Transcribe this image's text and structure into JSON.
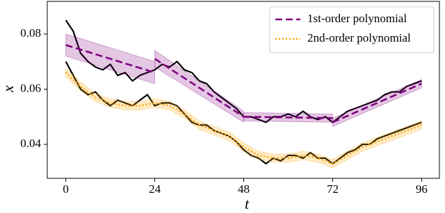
{
  "chart_data": {
    "type": "line",
    "xlabel": "t",
    "ylabel": "x",
    "xlim": [
      -5,
      100.8
    ],
    "ylim": [
      0.0277,
      0.0918
    ],
    "xticks": [
      0,
      24,
      48,
      72,
      96
    ],
    "yticks": [
      0.04,
      0.06,
      0.08
    ],
    "legend": "upper right",
    "series": [
      {
        "color": "#000000",
        "style": "solid",
        "x": [
          0,
          2,
          4,
          6,
          8,
          10,
          12,
          14,
          16,
          18,
          20,
          22,
          24,
          26,
          28,
          30,
          32,
          34,
          36,
          38,
          40,
          42,
          44,
          46,
          48,
          50,
          52,
          54,
          56,
          58,
          60,
          62,
          64,
          66,
          68,
          70,
          72,
          74,
          76,
          78,
          80,
          82,
          84,
          86,
          88,
          90,
          92,
          94,
          96
        ],
        "values": [
          0.085,
          0.081,
          0.073,
          0.07,
          0.068,
          0.067,
          0.069,
          0.065,
          0.066,
          0.063,
          0.065,
          0.066,
          0.067,
          0.069,
          0.068,
          0.07,
          0.067,
          0.066,
          0.063,
          0.062,
          0.059,
          0.057,
          0.055,
          0.053,
          0.05,
          0.05,
          0.049,
          0.048,
          0.05,
          0.05,
          0.051,
          0.05,
          0.052,
          0.05,
          0.049,
          0.05,
          0.048,
          0.05,
          0.052,
          0.053,
          0.054,
          0.055,
          0.056,
          0.058,
          0.059,
          0.059,
          0.061,
          0.062,
          0.063
        ]
      },
      {
        "color": "#000000",
        "style": "solid",
        "x": [
          0,
          2,
          4,
          6,
          8,
          10,
          12,
          14,
          16,
          18,
          20,
          22,
          24,
          26,
          28,
          30,
          32,
          34,
          36,
          38,
          40,
          42,
          44,
          46,
          48,
          50,
          52,
          54,
          56,
          58,
          60,
          62,
          64,
          66,
          68,
          70,
          72,
          74,
          76,
          78,
          80,
          82,
          84,
          86,
          88,
          90,
          92,
          94,
          96
        ],
        "values": [
          0.07,
          0.065,
          0.06,
          0.058,
          0.059,
          0.056,
          0.054,
          0.056,
          0.055,
          0.054,
          0.056,
          0.058,
          0.054,
          0.055,
          0.055,
          0.054,
          0.051,
          0.048,
          0.047,
          0.047,
          0.045,
          0.044,
          0.043,
          0.041,
          0.038,
          0.036,
          0.035,
          0.033,
          0.035,
          0.034,
          0.036,
          0.036,
          0.035,
          0.037,
          0.035,
          0.035,
          0.033,
          0.035,
          0.037,
          0.038,
          0.04,
          0.04,
          0.042,
          0.043,
          0.044,
          0.045,
          0.046,
          0.047,
          0.048
        ]
      },
      {
        "name": "1st-order polynomial",
        "color": "#800080",
        "style": "dashed",
        "x": [
          0,
          24,
          24,
          24,
          48,
          48,
          48,
          72,
          72,
          72,
          96
        ],
        "values": [
          0.076,
          0.066,
          null,
          0.071,
          0.05,
          null,
          0.05,
          0.0495,
          null,
          0.048,
          0.062
        ],
        "lower": [
          0.072,
          0.062,
          null,
          0.068,
          0.048,
          null,
          0.0485,
          0.048,
          null,
          0.0465,
          0.0605
        ],
        "upper": [
          0.08,
          0.07,
          null,
          0.074,
          0.052,
          null,
          0.0515,
          0.051,
          null,
          0.0495,
          0.0635
        ]
      },
      {
        "name": "2nd-order polynomial",
        "color": "#ffa500",
        "style": "dotted",
        "x": [
          0,
          4,
          8,
          12,
          16,
          20,
          24,
          28,
          32,
          36,
          40,
          44,
          48,
          52,
          56,
          60,
          64,
          68,
          72,
          76,
          80,
          84,
          88,
          92,
          96
        ],
        "values": [
          0.066,
          0.061,
          0.057,
          0.055,
          0.054,
          0.054,
          0.055,
          0.054,
          0.051,
          0.047,
          0.045,
          0.043,
          0.039,
          0.036,
          0.035,
          0.035,
          0.036,
          0.035,
          0.033,
          0.036,
          0.039,
          0.041,
          0.043,
          0.045,
          0.047
        ],
        "lower": [
          0.0645,
          0.0595,
          0.0555,
          0.0535,
          0.0525,
          0.0525,
          0.0535,
          0.0525,
          0.0495,
          0.0455,
          0.0435,
          0.0415,
          0.0375,
          0.0345,
          0.0335,
          0.0335,
          0.0345,
          0.0335,
          0.0315,
          0.0345,
          0.0375,
          0.0395,
          0.0415,
          0.0435,
          0.0455
        ],
        "upper": [
          0.0675,
          0.0625,
          0.0585,
          0.0565,
          0.0555,
          0.0555,
          0.0565,
          0.0555,
          0.0525,
          0.0485,
          0.0465,
          0.0445,
          0.0405,
          0.0375,
          0.0365,
          0.0365,
          0.0375,
          0.0365,
          0.0345,
          0.0375,
          0.0405,
          0.0425,
          0.0445,
          0.0465,
          0.0485
        ]
      }
    ]
  }
}
